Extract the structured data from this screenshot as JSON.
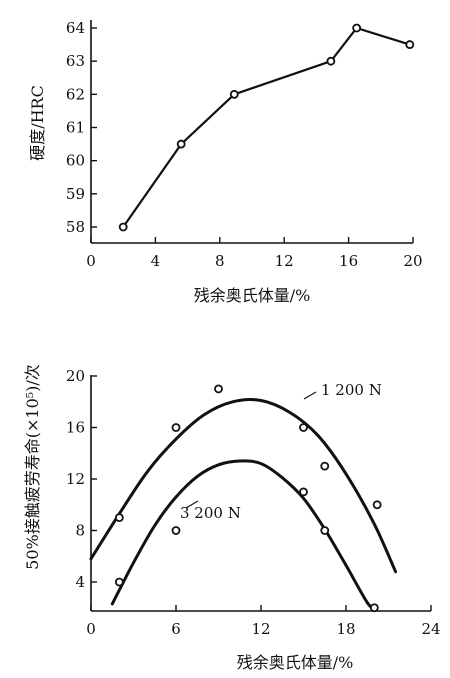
{
  "chart_data": [
    {
      "type": "line",
      "xlabel": "残余奥氏体量/%",
      "ylabel": "硬度/HRC",
      "xlim": [
        0,
        20
      ],
      "ylim": [
        57.5,
        64
      ],
      "xticks": [
        "0",
        "4",
        "8",
        "12",
        "16",
        "20"
      ],
      "yticks": [
        "58",
        "59",
        "60",
        "61",
        "62",
        "63",
        "64"
      ],
      "series": [
        {
          "x": [
            2,
            5.6,
            8.9,
            14.9,
            16.5,
            19.8
          ],
          "y": [
            58,
            60.5,
            62,
            63,
            64,
            63.5
          ]
        }
      ]
    },
    {
      "type": "scatter",
      "xlabel": "残余奥氏体量/%",
      "ylabel": "50%接触疲劳寿命(×10⁵)/次",
      "xlim": [
        0,
        24
      ],
      "ylim": [
        2,
        20
      ],
      "xticks": [
        "0",
        "6",
        "12",
        "18",
        "24"
      ],
      "yticks": [
        "4",
        "8",
        "12",
        "16",
        "20"
      ],
      "series": [
        {
          "name": "1 200 N",
          "points_x": [
            2,
            6,
            9,
            15,
            16.5,
            20.2
          ],
          "points_y": [
            9,
            16,
            19,
            16,
            13,
            10
          ],
          "curve_x": [
            0,
            2,
            4,
            6,
            8,
            10,
            12,
            14,
            16,
            18,
            20,
            21.5
          ],
          "curve_y": [
            5.8,
            9.3,
            12.6,
            15.1,
            17,
            18,
            18.1,
            17.2,
            15.4,
            12.4,
            8.5,
            4.8
          ]
        },
        {
          "name": "3 200 N",
          "points_x": [
            2,
            6,
            15,
            16.5,
            20
          ],
          "points_y": [
            4,
            8,
            11,
            8,
            2
          ],
          "curve_x": [
            1.5,
            3,
            4.5,
            6,
            7.5,
            9,
            10.5,
            12,
            13.5,
            15,
            16.5,
            18,
            19.5,
            20
          ],
          "curve_y": [
            2.3,
            5.5,
            8.4,
            10.6,
            12.2,
            13.1,
            13.4,
            13.2,
            12.1,
            10.5,
            8.1,
            5.3,
            2.4,
            2
          ]
        }
      ]
    }
  ]
}
